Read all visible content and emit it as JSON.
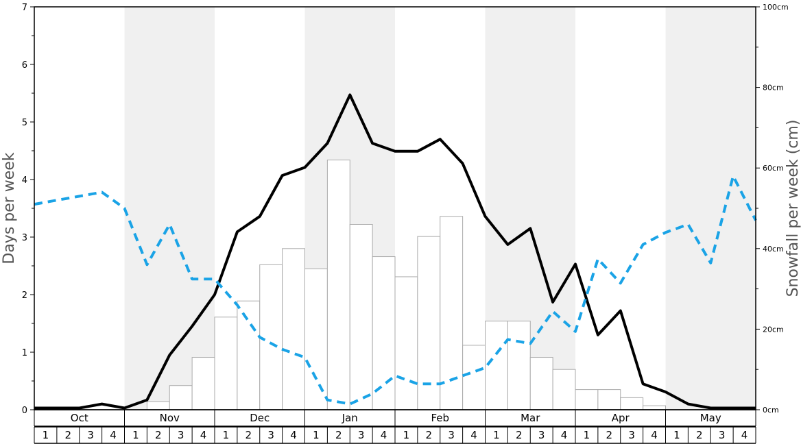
{
  "chart_data": {
    "type": "bar+line",
    "ylabel_left": "Days per week",
    "ylabel_right": "Snowfall per week (cm)",
    "ylim_left": [
      0,
      7
    ],
    "ylim_right": [
      0,
      100
    ],
    "left_ticks": [
      "0",
      "1",
      "2",
      "3",
      "4",
      "5",
      "6",
      "7"
    ],
    "right_ticks": [
      "0cm",
      "20cm",
      "40cm",
      "60cm",
      "80cm",
      "100cm"
    ],
    "months": [
      "Oct",
      "Nov",
      "Dec",
      "Jan",
      "Feb",
      "Mar",
      "Apr",
      "May"
    ],
    "weeks": [
      "1",
      "2",
      "3",
      "4"
    ],
    "shaded_months": [
      1,
      3,
      5,
      7
    ],
    "colors": {
      "bar_fill": "#ffffff",
      "bar_stroke": "#aaaaaa",
      "solid_line": "#000000",
      "dashed_line": "#1aa3e6",
      "shade": "#f0f0f0"
    },
    "series": [
      {
        "type": "bar",
        "axis": "right",
        "values": [
          0,
          0,
          0,
          0,
          0,
          2,
          6,
          13,
          23,
          27,
          36,
          40,
          35,
          62,
          46,
          38,
          33,
          43,
          48,
          16,
          22,
          22,
          13,
          10,
          5,
          5,
          3,
          1,
          0,
          0,
          0,
          0
        ]
      },
      {
        "type": "line",
        "style": "solid",
        "axis": "left",
        "values": [
          0.03,
          0.03,
          0.03,
          0.1,
          0.03,
          0.17,
          0.95,
          1.45,
          2.0,
          3.09,
          3.36,
          4.07,
          4.21,
          4.63,
          5.47,
          4.63,
          4.49,
          4.49,
          4.7,
          4.28,
          3.36,
          2.87,
          3.15,
          1.87,
          2.53,
          1.3,
          1.72,
          0.45,
          0.31,
          0.1,
          0.03,
          0.03,
          0.03
        ]
      },
      {
        "type": "line",
        "style": "dashed",
        "axis": "left",
        "values": [
          3.57,
          3.64,
          3.71,
          3.78,
          3.5,
          2.52,
          3.22,
          2.27,
          2.27,
          1.82,
          1.26,
          1.05,
          0.91,
          0.17,
          0.1,
          0.28,
          0.59,
          0.45,
          0.45,
          0.59,
          0.73,
          1.22,
          1.15,
          1.71,
          1.36,
          2.62,
          2.2,
          2.87,
          3.08,
          3.22,
          2.55,
          4.06,
          3.29
        ]
      }
    ]
  }
}
